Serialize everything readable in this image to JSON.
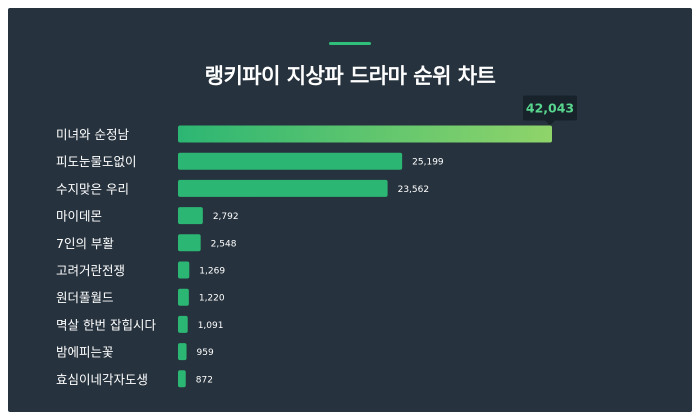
{
  "header": {
    "title": "랭키파이 지상파 드라마 순위 차트"
  },
  "colors": {
    "background": "#26323d",
    "accent": "#2fbf7a",
    "bar": "#2cb673",
    "bar_gradient_end": "#8fd46a",
    "text": "#ffffff",
    "tooltip_bg": "#17222b",
    "tooltip_text": "#58d68d"
  },
  "chart_data": {
    "type": "bar",
    "orientation": "horizontal",
    "title": "랭키파이 지상파 드라마 순위 차트",
    "categories": [
      "미녀와 순정남",
      "피도눈물도없이",
      "수지맞은 우리",
      "마이데몬",
      "7인의 부활",
      "고려거란전쟁",
      "원더풀월드",
      "멱살 한번 잡힙시다",
      "밤에피는꽃",
      "효심이네각자도생"
    ],
    "values": [
      42043,
      25199,
      23562,
      2792,
      2548,
      1269,
      1220,
      1091,
      959,
      872
    ],
    "value_labels": [
      "42,043",
      "25,199",
      "23,562",
      "2,792",
      "2,548",
      "1,269",
      "1,220",
      "1,091",
      "959",
      "872"
    ],
    "xlim": [
      0,
      42043
    ],
    "grid": false,
    "legend": "none"
  }
}
